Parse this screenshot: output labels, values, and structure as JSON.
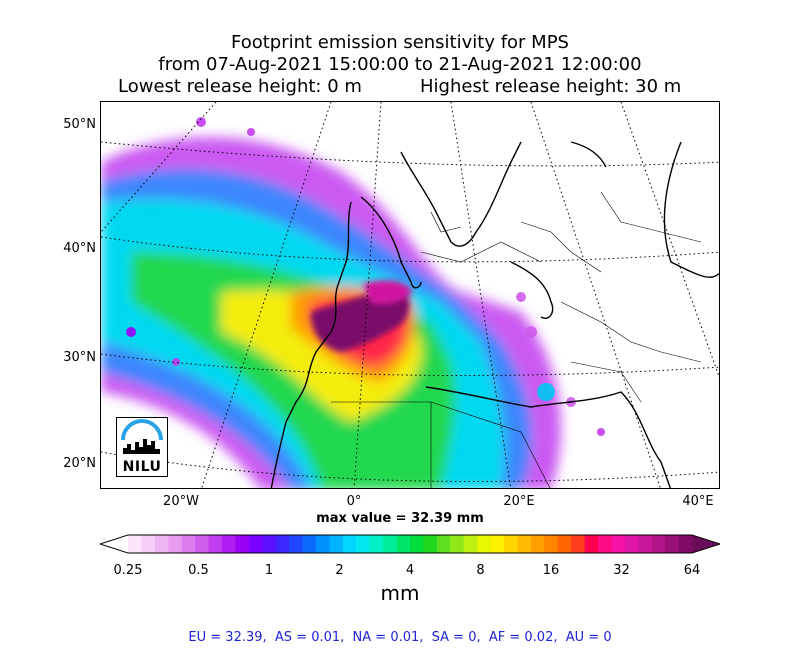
{
  "title": {
    "line1": "Footprint emission sensitivity for MPS",
    "line2": "from 07-Aug-2021 15:00:00 to 21-Aug-2021 12:00:00",
    "line3_left": "Lowest release height: 0 m",
    "line3_right": "Highest release height: 30 m"
  },
  "axes": {
    "lat_labels": [
      "50°N",
      "40°N",
      "30°N",
      "20°N"
    ],
    "lon_labels": [
      "20°W",
      "0°",
      "20°E",
      "40°E"
    ]
  },
  "map": {
    "max_value_text": "max value = 32.39 mm",
    "logo_text": "NILU",
    "logo_icon": "nilu-arc-skyline-icon"
  },
  "colorbar": {
    "ticks": [
      "0.25",
      "0.5",
      "1",
      "2",
      "4",
      "8",
      "16",
      "32",
      "64"
    ],
    "unit": "mm",
    "colors": [
      "#ffffff",
      "#fbe6fb",
      "#f6cdf6",
      "#efb4f2",
      "#e79bef",
      "#dd7ced",
      "#d05ced",
      "#c23cf0",
      "#b01df3",
      "#9b00f8",
      "#7a00ff",
      "#5b10ff",
      "#3c28ff",
      "#2048ff",
      "#0a6aff",
      "#0090ff",
      "#00b4ff",
      "#00d5ff",
      "#00eaf0",
      "#00f0c8",
      "#00ee9a",
      "#00e66a",
      "#00dc3a",
      "#20d820",
      "#5ce020",
      "#90e818",
      "#c0f010",
      "#e8f800",
      "#fff000",
      "#ffd600",
      "#ffbc00",
      "#ffa000",
      "#ff8400",
      "#ff6400",
      "#ff3c1c",
      "#ff0050",
      "#ff0a86",
      "#f812a8",
      "#e016a8",
      "#c81698",
      "#b01488",
      "#981078",
      "#800c68",
      "#6c0a5c"
    ]
  },
  "footer_text": "EU = 32.39,  AS = 0.01,  NA = 0.01,  SA = 0,  AF = 0.02,  AU = 0"
}
